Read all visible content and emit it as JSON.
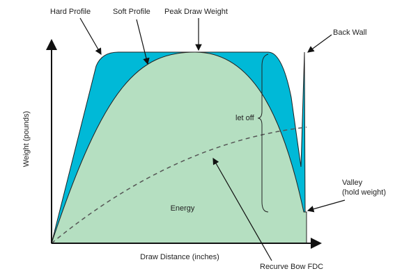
{
  "labels": {
    "hard_profile": "Hard Profile",
    "soft_profile": "Soft Profile",
    "peak": "Peak Draw Weight",
    "back_wall": "Back Wall",
    "let_off": "let off",
    "y_axis": "Weight (pounds)",
    "energy": "Energy",
    "valley": [
      "Valley",
      "(hold weight)"
    ],
    "x_axis": "Draw Distance (inches)",
    "fdc": "Recurve Bow FDC"
  }
}
